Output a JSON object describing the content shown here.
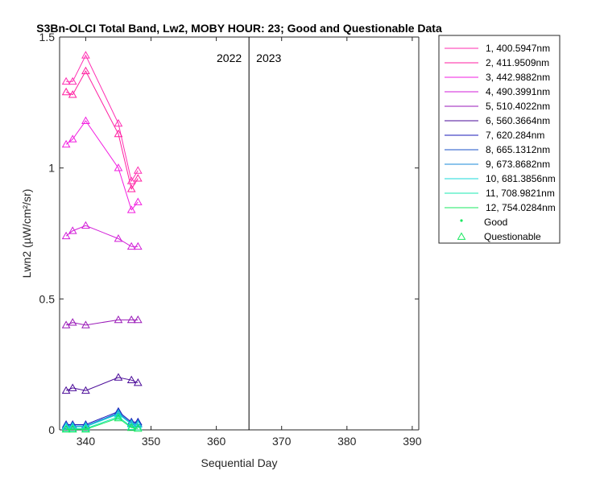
{
  "chart_data": {
    "type": "line",
    "title": "S3Bn-OLCI Total Band, Lw2, MOBY HOUR: 23;  Good and Questionable Data",
    "xlabel": "Sequential Day",
    "ylabel": "Lwn2 (µW/cm²/sr)",
    "xlim": [
      336,
      391
    ],
    "ylim": [
      0,
      1.5
    ],
    "xticks": [
      340,
      350,
      360,
      370,
      380,
      390
    ],
    "yticks": [
      0,
      0.5,
      1,
      1.5
    ],
    "ytick_labels": [
      "0",
      "0.5",
      "1",
      "1.5"
    ],
    "grid": false,
    "legend_position": "outside-right",
    "x": [
      337,
      338,
      340,
      345,
      347,
      348
    ],
    "series": [
      {
        "name": "1, 400.5947nm",
        "color": "#ff2eb2",
        "values": [
          1.33,
          1.33,
          1.43,
          1.17,
          0.95,
          0.99
        ]
      },
      {
        "name": "2, 411.9509nm",
        "color": "#ff1ea0",
        "values": [
          1.29,
          1.28,
          1.37,
          1.13,
          0.92,
          0.96
        ]
      },
      {
        "name": "3, 442.9882nm",
        "color": "#f21ee0",
        "values": [
          1.09,
          1.11,
          1.18,
          1.0,
          0.84,
          0.87
        ]
      },
      {
        "name": "4, 490.3991nm",
        "color": "#d21ed8",
        "values": [
          0.74,
          0.76,
          0.78,
          0.73,
          0.7,
          0.7
        ]
      },
      {
        "name": "5, 510.4022nm",
        "color": "#9a1ab8",
        "values": [
          0.4,
          0.41,
          0.4,
          0.42,
          0.42,
          0.42
        ]
      },
      {
        "name": "6, 560.3664nm",
        "color": "#4a0a98",
        "values": [
          0.15,
          0.16,
          0.15,
          0.2,
          0.19,
          0.18
        ]
      },
      {
        "name": "7,  620.284nm",
        "color": "#1a1ab8",
        "values": [
          0.02,
          0.02,
          0.02,
          0.07,
          0.03,
          0.03
        ]
      },
      {
        "name": "8, 665.1312nm",
        "color": "#1a52c8",
        "values": [
          0.015,
          0.015,
          0.015,
          0.065,
          0.025,
          0.025
        ]
      },
      {
        "name": "9, 673.8682nm",
        "color": "#1a8ad8",
        "values": [
          0.015,
          0.015,
          0.015,
          0.063,
          0.025,
          0.022
        ]
      },
      {
        "name": "10, 681.3856nm",
        "color": "#1ad8d8",
        "values": [
          0.012,
          0.012,
          0.012,
          0.06,
          0.022,
          0.02
        ]
      },
      {
        "name": "11, 708.9821nm",
        "color": "#1ae8b0",
        "values": [
          0.005,
          0.005,
          0.005,
          0.05,
          0.012,
          0.01
        ]
      },
      {
        "name": "12, 754.0284nm",
        "color": "#1ae860",
        "values": [
          0.002,
          0.002,
          0.002,
          0.045,
          0.008,
          0.005
        ]
      }
    ],
    "marker_legend": [
      {
        "label": "Good",
        "marker": "dot",
        "color": "#1ae860"
      },
      {
        "label": "Questionable",
        "marker": "triangle",
        "color": "#1ae860"
      }
    ],
    "year_divider": {
      "x": 365,
      "left_label": "2022",
      "right_label": "2023"
    }
  }
}
